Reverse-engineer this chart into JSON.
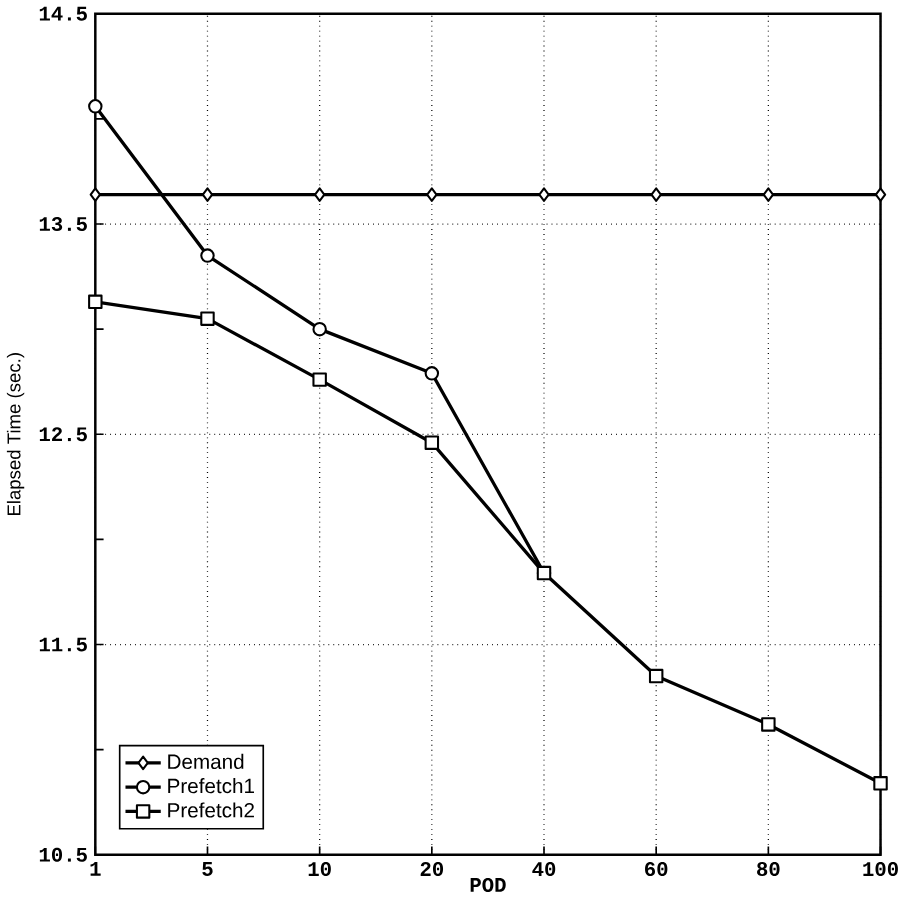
{
  "chart_data": {
    "type": "line",
    "xlabel": "POD",
    "ylabel": "Elapsed Time (sec.)",
    "categories": [
      "1",
      "5",
      "10",
      "20",
      "40",
      "60",
      "80",
      "100"
    ],
    "series": [
      {
        "name": "Demand",
        "color": "#000000",
        "marker": "diamond",
        "values": [
          13.64,
          13.64,
          13.64,
          13.64,
          13.64,
          13.64,
          13.64,
          13.64
        ]
      },
      {
        "name": "Prefetch1",
        "color": "#000000",
        "marker": "circle",
        "values": [
          14.06,
          13.35,
          13.0,
          12.79,
          11.84,
          null,
          null,
          null
        ]
      },
      {
        "name": "Prefetch2",
        "color": "#000000",
        "marker": "square",
        "values": [
          13.13,
          13.05,
          12.76,
          12.46,
          11.84,
          11.35,
          11.12,
          10.84
        ]
      }
    ],
    "ylim": [
      10.5,
      14.5
    ],
    "yticks": [
      10.5,
      {
        "value": 11,
        "label": null
      },
      11.5,
      {
        "value": 12,
        "label": null
      },
      12.5,
      {
        "value": 13,
        "label": null
      },
      13.5,
      {
        "value": 14,
        "label": null
      },
      14.5
    ],
    "grid": true,
    "legend": "bottom left",
    "line_style": "solid"
  }
}
